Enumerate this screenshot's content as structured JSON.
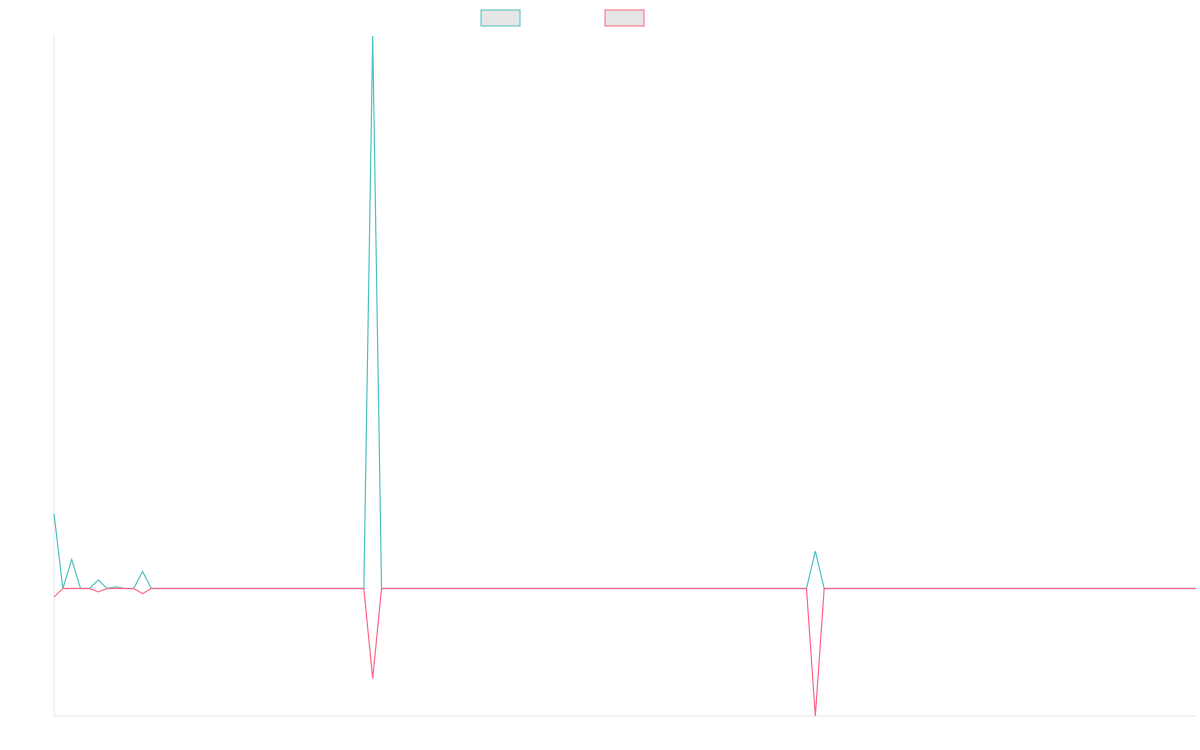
{
  "chart_data": {
    "type": "line",
    "title": "",
    "xlabel": "",
    "ylabel": "",
    "legend_position": "top-center",
    "grid": false,
    "x_count": 130,
    "xlim": [
      0,
      129
    ],
    "ylim": [
      -7.5,
      32.5
    ],
    "baseline": 0,
    "series": [
      {
        "name": "",
        "color": "#4bc0c0",
        "points": [
          [
            0,
            4.4
          ],
          [
            1,
            0
          ],
          [
            2,
            1.7
          ],
          [
            3,
            0
          ],
          [
            4,
            0
          ],
          [
            5,
            0.5
          ],
          [
            6,
            0
          ],
          [
            7,
            0.1
          ],
          [
            8,
            0
          ],
          [
            9,
            0
          ],
          [
            10,
            1.0
          ],
          [
            11,
            0
          ],
          [
            35,
            0
          ],
          [
            36,
            32.5
          ],
          [
            37,
            0
          ],
          [
            85,
            0
          ],
          [
            86,
            2.2
          ],
          [
            87,
            0
          ],
          [
            129,
            0
          ]
        ]
      },
      {
        "name": "",
        "color": "#ff6384",
        "points": [
          [
            0,
            -0.5
          ],
          [
            1,
            0
          ],
          [
            2,
            0
          ],
          [
            3,
            0
          ],
          [
            4,
            0
          ],
          [
            5,
            -0.2
          ],
          [
            6,
            0
          ],
          [
            7,
            0
          ],
          [
            8,
            0
          ],
          [
            9,
            0
          ],
          [
            10,
            -0.3
          ],
          [
            11,
            0
          ],
          [
            35,
            0
          ],
          [
            36,
            -5.3
          ],
          [
            37,
            0
          ],
          [
            85,
            0
          ],
          [
            86,
            -7.5
          ],
          [
            87,
            0
          ],
          [
            129,
            0
          ]
        ]
      }
    ]
  }
}
